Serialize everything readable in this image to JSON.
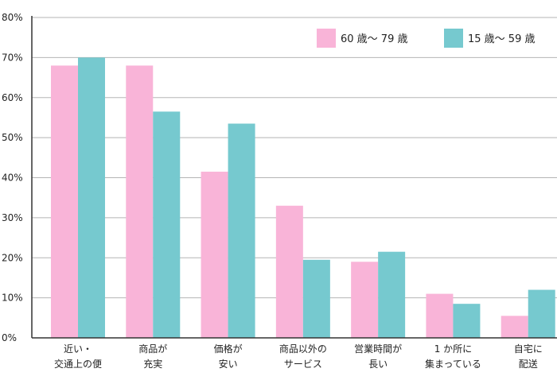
{
  "chart_data": {
    "type": "bar",
    "title": "",
    "xlabel": "",
    "ylabel": "",
    "categories": [
      [
        "近い・",
        "交通上の便"
      ],
      [
        "商品が",
        "充実"
      ],
      [
        "価格が",
        "安い"
      ],
      [
        "商品以外の",
        "サービス"
      ],
      [
        "営業時間が",
        "長い"
      ],
      [
        "1 か所に",
        "集まっている"
      ],
      [
        "自宅に",
        "配送"
      ]
    ],
    "series": [
      {
        "name": "60 歳〜 79 歳",
        "color": "#f9b4d8",
        "values": [
          68,
          68,
          41.5,
          33,
          19,
          11,
          5.5
        ]
      },
      {
        "name": "15 歳〜 59 歳",
        "color": "#76c9cf",
        "values": [
          70,
          56.5,
          53.5,
          19.5,
          21.5,
          8.5,
          12
        ]
      }
    ],
    "yticks": [
      "0%",
      "10%",
      "20%",
      "30%",
      "40%",
      "50%",
      "60%",
      "70%",
      "80%"
    ],
    "ylim": [
      0,
      80
    ],
    "grid": true,
    "legend_position": "top-right"
  }
}
